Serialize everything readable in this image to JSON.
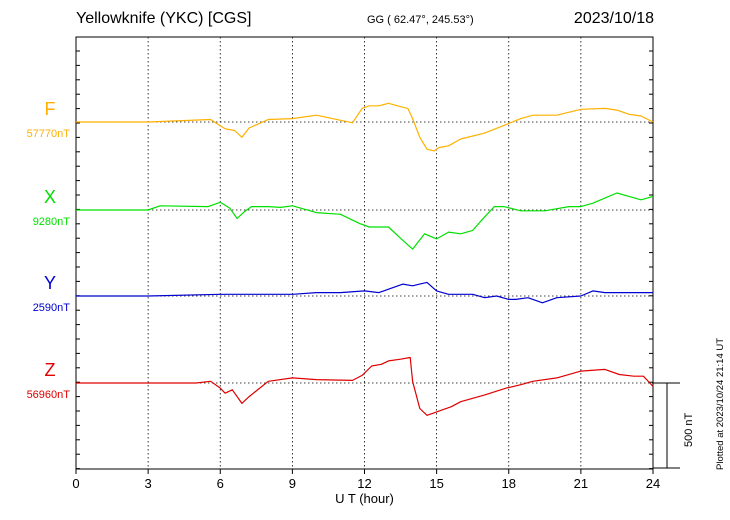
{
  "header": {
    "title": "Yellowknife (YKC)  [CGS]",
    "coords": "GG ( 62.47°, 245.53°)",
    "date": "2023/10/18"
  },
  "plotted_at": "Plotted at 2023/10/24 21:14 UT",
  "scale_label": "500 nT",
  "colors": {
    "F": "#ffb000",
    "X": "#00e000",
    "Y": "#0000d0",
    "Z": "#e00000"
  },
  "chart_data": {
    "type": "line",
    "title": "Yellowknife (YKC)  [CGS]",
    "xlabel": "U T (hour)",
    "ylabel": "",
    "xlim": [
      0,
      24
    ],
    "x_ticks": [
      0,
      3,
      6,
      9,
      12,
      15,
      18,
      21,
      24
    ],
    "x_tick_labels": [
      "0",
      "3",
      "6",
      "9",
      "12",
      "15",
      "18",
      "21",
      "24"
    ],
    "scale_bar_nT": 500,
    "offset_units": "nT relative to each panel baseline (positive = up)",
    "grid": true,
    "series": [
      {
        "name": "F",
        "baseline_label": "57770nT",
        "x": [
          0,
          3,
          5.6,
          6.2,
          6.6,
          6.9,
          7.2,
          8,
          9,
          10,
          11.5,
          11.9,
          12.2,
          12.6,
          13,
          13.5,
          13.8,
          14,
          14.3,
          14.6,
          14.9,
          15.1,
          15.5,
          16,
          17,
          17.8,
          18.5,
          19,
          20,
          21,
          22,
          22.5,
          23,
          23.5,
          24
        ],
        "values": [
          0,
          0,
          15,
          -40,
          -50,
          -90,
          -35,
          15,
          20,
          40,
          -5,
          80,
          95,
          95,
          110,
          90,
          80,
          20,
          -90,
          -160,
          -170,
          -150,
          -140,
          -100,
          -65,
          -20,
          20,
          40,
          40,
          75,
          80,
          70,
          45,
          35,
          0
        ]
      },
      {
        "name": "X",
        "baseline_label": "9280nT",
        "x": [
          0,
          3,
          3.5,
          5.5,
          6,
          6.4,
          6.7,
          7,
          7.3,
          8,
          8.5,
          9,
          10,
          11,
          11.8,
          12.2,
          13,
          13.6,
          14,
          14.5,
          15,
          15.5,
          16,
          16.5,
          17,
          17.4,
          17.8,
          18.5,
          19.5,
          20.5,
          21,
          21.5,
          22,
          22.5,
          23,
          23.5,
          24
        ],
        "values": [
          0,
          0,
          25,
          20,
          45,
          10,
          -50,
          -10,
          20,
          20,
          15,
          25,
          -15,
          -25,
          -80,
          -100,
          -100,
          -180,
          -230,
          -140,
          -170,
          -130,
          -140,
          -120,
          -40,
          20,
          20,
          -5,
          -5,
          20,
          20,
          40,
          70,
          100,
          80,
          60,
          80
        ]
      },
      {
        "name": "Y",
        "baseline_label": "2590nT",
        "x": [
          0,
          3,
          6,
          8,
          9,
          10,
          11,
          12,
          12.6,
          13,
          13.6,
          14,
          14.3,
          14.6,
          15,
          15.5,
          16,
          16.5,
          17,
          17.5,
          18,
          18.3,
          18.8,
          19.4,
          20,
          21,
          21.5,
          22,
          23,
          24
        ],
        "values": [
          0,
          0,
          10,
          10,
          10,
          20,
          20,
          30,
          20,
          40,
          70,
          60,
          70,
          80,
          30,
          10,
          10,
          10,
          -10,
          0,
          -20,
          -20,
          -10,
          -40,
          -10,
          0,
          30,
          20,
          20,
          20
        ]
      },
      {
        "name": "Z",
        "baseline_label": "56960nT",
        "x": [
          0,
          3,
          5,
          5.6,
          6,
          6.2,
          6.5,
          6.9,
          7.2,
          8,
          9,
          10,
          11.5,
          11.9,
          12.3,
          12.7,
          13,
          13.5,
          13.9,
          14,
          14.3,
          14.6,
          14.9,
          15.2,
          15.6,
          16,
          17,
          17.9,
          18.5,
          19,
          20,
          21,
          22,
          22.6,
          23.2,
          23.6,
          24
        ],
        "values": [
          0,
          0,
          0,
          10,
          -30,
          -60,
          -40,
          -120,
          -80,
          10,
          30,
          20,
          15,
          45,
          100,
          110,
          130,
          140,
          150,
          10,
          -150,
          -190,
          -175,
          -160,
          -140,
          -110,
          -70,
          -30,
          -10,
          10,
          30,
          70,
          80,
          50,
          40,
          40,
          -20
        ]
      }
    ]
  }
}
